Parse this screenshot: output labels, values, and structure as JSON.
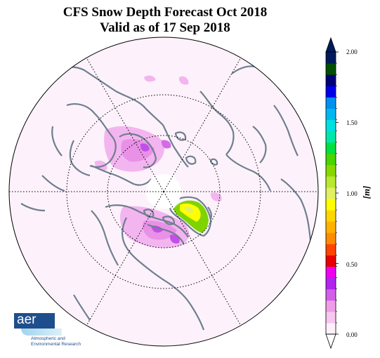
{
  "title_line1": "CFS Snow Depth Forecast Oct 2018",
  "title_line2": "Valid as of 17 Sep 2018",
  "colorbar": {
    "label": "[m]",
    "tick_labels": [
      "2.00",
      "1.50",
      "1.00",
      "0.50",
      "0.00"
    ],
    "ticks": [
      2.0,
      1.5,
      1.0,
      0.5,
      0.0
    ],
    "range": [
      0.0,
      2.0
    ],
    "colors": [
      "#fdf0fb",
      "#f7c7f0",
      "#ee9de7",
      "#d35fe9",
      "#b224f0",
      "#f000f0",
      "#e80000",
      "#ff4400",
      "#ff8c00",
      "#ffb300",
      "#ffd500",
      "#ffff00",
      "#e0f060",
      "#b8e830",
      "#88d800",
      "#4ad400",
      "#00e040",
      "#00e8a8",
      "#00e0e0",
      "#00b8f0",
      "#0090f0",
      "#0000e8",
      "#00007a",
      "#005000",
      "#001a5c"
    ]
  },
  "logo": {
    "text": "aer",
    "subtitle_line1": "Atmospheric and",
    "subtitle_line2": "Environmental Research"
  },
  "map": {
    "projection": "north-polar-stereographic",
    "colors": {
      "coastline": "#6e7f8e",
      "background": "#fdf2fb",
      "grid": "#000000"
    }
  }
}
